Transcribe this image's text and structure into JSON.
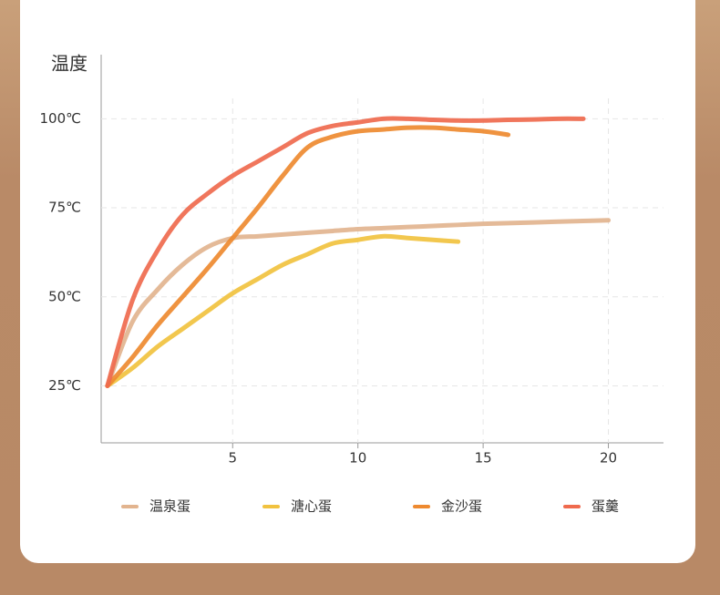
{
  "chart_data": {
    "type": "line",
    "y_label": "温度",
    "x": [
      0,
      1,
      2,
      3,
      4,
      5,
      6,
      7,
      8,
      9,
      10,
      11,
      12,
      13,
      14,
      15,
      16,
      17,
      18,
      19,
      20
    ],
    "xlim": [
      -0.25,
      22.2
    ],
    "xticks": [
      5,
      10,
      15,
      20
    ],
    "ylim": [
      9,
      118
    ],
    "yticks": [
      {
        "value": 25,
        "label": "25℃"
      },
      {
        "value": 50,
        "label": "50℃"
      },
      {
        "value": 75,
        "label": "75℃"
      },
      {
        "value": 100,
        "label": "100℃"
      }
    ],
    "grid": true,
    "legend": "bottom",
    "series": [
      {
        "name": "温泉蛋",
        "color": "#e2b48f",
        "values": [
          25,
          43,
          52,
          59,
          64,
          66.5,
          67,
          67.5,
          68,
          68.5,
          69,
          69.3,
          69.6,
          69.9,
          70.2,
          70.5,
          70.7,
          70.9,
          71.1,
          71.3,
          71.5
        ]
      },
      {
        "name": "溏心蛋",
        "color": "#f1c23f",
        "values": [
          25,
          30,
          36,
          41,
          46,
          51,
          55,
          59,
          62,
          65,
          66,
          67,
          66.5,
          66,
          65.5,
          null,
          null,
          null,
          null,
          null,
          null
        ]
      },
      {
        "name": "金沙蛋",
        "color": "#ee8a30",
        "values": [
          25,
          33,
          42,
          50,
          58,
          66.5,
          75,
          84,
          92,
          95,
          96.5,
          97,
          97.5,
          97.5,
          97,
          96.5,
          95.5,
          null,
          null,
          null,
          null
        ]
      },
      {
        "name": "蛋羹",
        "color": "#ef6a4e",
        "values": [
          25,
          49,
          63,
          73,
          79,
          84,
          88,
          92,
          96,
          98,
          99,
          100,
          100,
          99.7,
          99.5,
          99.5,
          99.7,
          99.8,
          100,
          100,
          null
        ]
      }
    ]
  }
}
